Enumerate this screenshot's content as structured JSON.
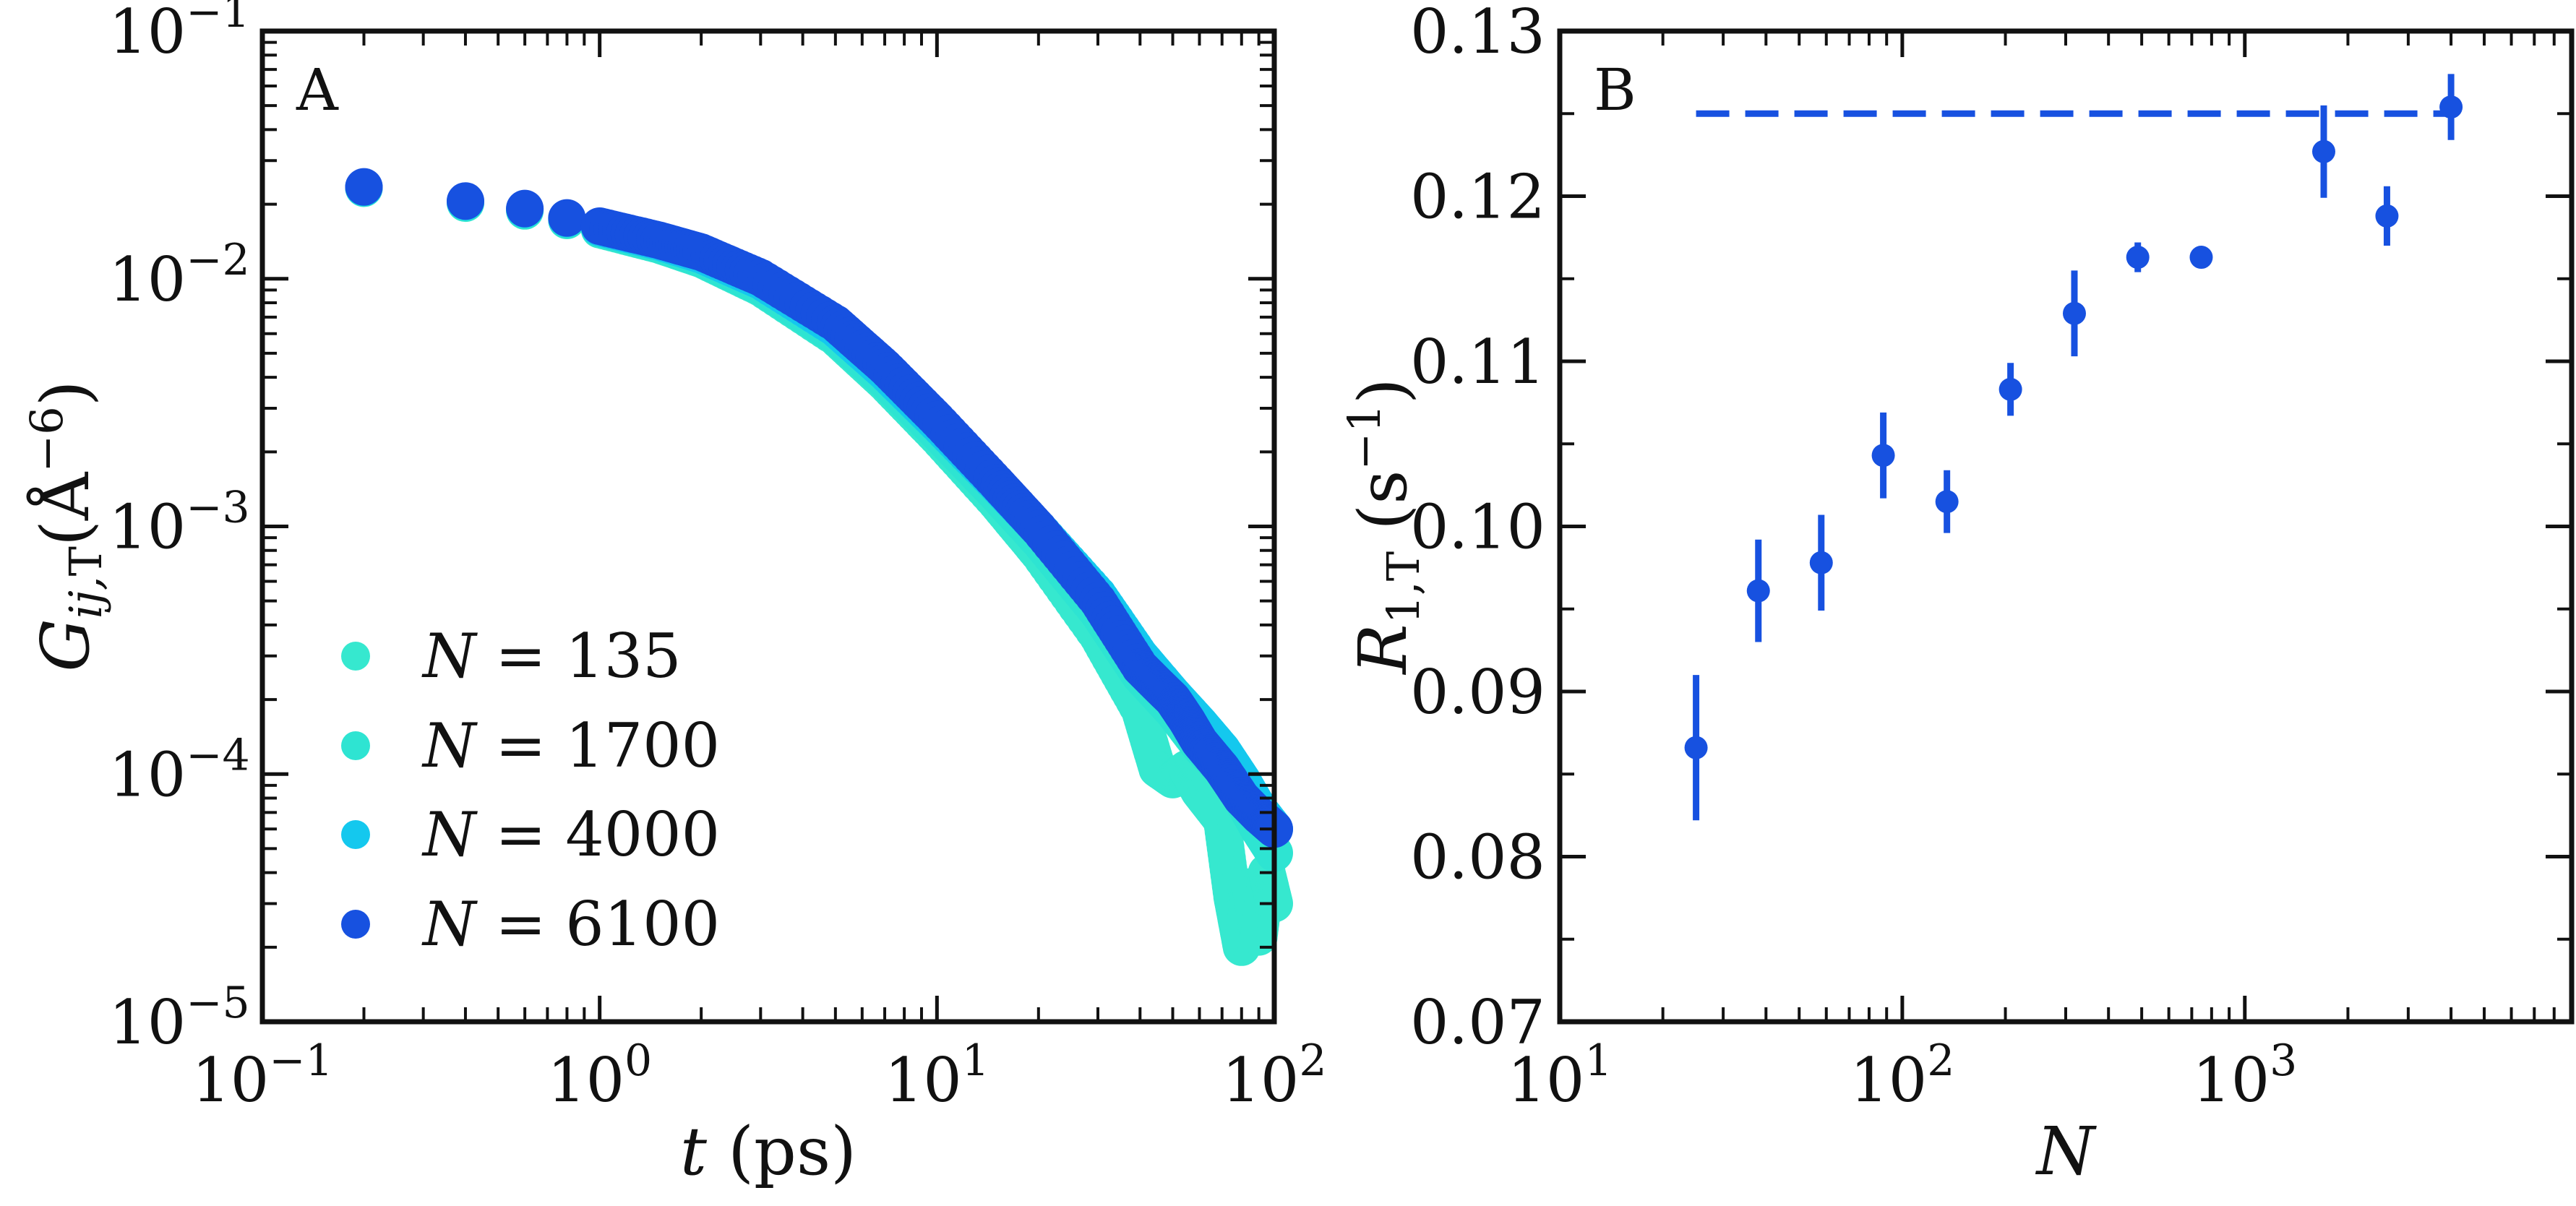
{
  "chart_data": [
    {
      "panel": "A",
      "type": "scatter",
      "xscale": "log",
      "yscale": "log",
      "xlim": [
        0.1,
        100
      ],
      "ylim": [
        1e-05,
        0.1
      ],
      "xlabel": "t (ps)",
      "ylabel": "G_ij,T(Å^−6)",
      "xticks": [
        {
          "value": 0.1,
          "base": "10",
          "exp": "−1"
        },
        {
          "value": 1,
          "base": "10",
          "exp": "0"
        },
        {
          "value": 10,
          "base": "10",
          "exp": "1"
        },
        {
          "value": 100,
          "base": "10",
          "exp": "2"
        }
      ],
      "yticks": [
        {
          "value": 0.1,
          "base": "10",
          "exp": "−1"
        },
        {
          "value": 0.01,
          "base": "10",
          "exp": "−2"
        },
        {
          "value": 0.001,
          "base": "10",
          "exp": "−3"
        },
        {
          "value": 0.0001,
          "base": "10",
          "exp": "−4"
        },
        {
          "value": 1e-05,
          "base": "10",
          "exp": "−5"
        }
      ],
      "legend_position": "bottom-left",
      "series": [
        {
          "name": "N = 135",
          "color": "#36e8cf",
          "x": [
            0.2,
            0.4,
            0.6,
            0.8,
            1.0,
            1.5,
            2,
            3,
            5,
            7,
            10,
            15,
            20,
            30,
            40,
            45,
            50,
            55,
            60,
            70,
            75,
            80,
            85,
            90,
            95,
            100
          ],
          "y": [
            0.0232,
            0.0202,
            0.0188,
            0.0172,
            0.0158,
            0.0137,
            0.012,
            0.0092,
            0.0058,
            0.0038,
            0.0023,
            0.00125,
            0.00078,
            0.00036,
            0.00018,
            0.000105,
            9.5e-05,
            0.000105,
            8.5e-05,
            6.5e-05,
            3.2e-05,
            2e-05,
            3.5e-05,
            2.2e-05,
            4e-05,
            3e-05
          ]
        },
        {
          "name": "N = 1700",
          "color": "#2ee4d2",
          "x": [
            0.2,
            0.4,
            0.6,
            0.8,
            1.0,
            1.5,
            2,
            3,
            5,
            7,
            10,
            15,
            20,
            30,
            40,
            50,
            60,
            70,
            80,
            90,
            100
          ],
          "y": [
            0.0233,
            0.0203,
            0.0189,
            0.0173,
            0.0159,
            0.0138,
            0.0121,
            0.0093,
            0.0059,
            0.0039,
            0.0024,
            0.00135,
            0.00088,
            0.00045,
            0.00025,
            0.00018,
            0.00013,
            0.000105,
            8e-05,
            6e-05,
            4.8e-05
          ]
        },
        {
          "name": "N = 4000",
          "color": "#14c8ee",
          "x": [
            0.2,
            0.4,
            0.6,
            0.8,
            1.0,
            1.5,
            2,
            3,
            5,
            7,
            10,
            15,
            20,
            30,
            40,
            50,
            60,
            70,
            80,
            90,
            100
          ],
          "y": [
            0.0234,
            0.0205,
            0.0191,
            0.0175,
            0.0161,
            0.0141,
            0.0125,
            0.0098,
            0.0063,
            0.0042,
            0.0026,
            0.00148,
            0.00098,
            0.00053,
            0.0003,
            0.00021,
            0.00016,
            0.000125,
            9.5e-05,
            7.2e-05,
            6e-05
          ]
        },
        {
          "name": "N = 6100",
          "color": "#1751e0",
          "x": [
            0.2,
            0.4,
            0.6,
            0.8,
            1.0,
            1.5,
            2,
            3,
            5,
            7,
            10,
            15,
            20,
            30,
            40,
            45,
            50,
            55,
            60,
            70,
            80,
            90,
            100
          ],
          "y": [
            0.0235,
            0.0206,
            0.0192,
            0.0176,
            0.0163,
            0.0143,
            0.0128,
            0.0101,
            0.0066,
            0.0044,
            0.0027,
            0.0015,
            0.00098,
            0.0005,
            0.00027,
            0.00023,
            0.0002,
            0.000165,
            0.000135,
            0.000105,
            8e-05,
            6.8e-05,
            6e-05
          ]
        }
      ]
    },
    {
      "panel": "B",
      "type": "scatter",
      "xscale": "log",
      "yscale": "linear",
      "xlim": [
        10,
        9000
      ],
      "ylim": [
        0.07,
        0.13
      ],
      "xlabel": "N",
      "ylabel": "R_1,T (s^−1)",
      "xticks": [
        {
          "value": 10,
          "base": "10",
          "exp": "1"
        },
        {
          "value": 100,
          "base": "10",
          "exp": "2"
        },
        {
          "value": 1000,
          "base": "10",
          "exp": "3"
        }
      ],
      "yticks": [
        0.07,
        0.08,
        0.09,
        0.1,
        0.11,
        0.12,
        0.13
      ],
      "ytick_labels": [
        "0.07",
        "0.08",
        "0.09",
        "0.10",
        "0.11",
        "0.12",
        "0.13"
      ],
      "color": "#1751e0",
      "reference_line": {
        "y": 0.125,
        "x_range": [
          25,
          4000
        ],
        "style": "dashed"
      },
      "points": [
        {
          "x": 25,
          "y": 0.0866,
          "err": 0.0044
        },
        {
          "x": 38,
          "y": 0.0961,
          "err": 0.0031
        },
        {
          "x": 58,
          "y": 0.0978,
          "err": 0.0029
        },
        {
          "x": 88,
          "y": 0.1043,
          "err": 0.0026
        },
        {
          "x": 135,
          "y": 0.1015,
          "err": 0.0019
        },
        {
          "x": 207,
          "y": 0.1083,
          "err": 0.0016
        },
        {
          "x": 318,
          "y": 0.1129,
          "err": 0.0026
        },
        {
          "x": 487,
          "y": 0.1163,
          "err": 0.0009
        },
        {
          "x": 746,
          "y": 0.1163,
          "err": 0.0002
        },
        {
          "x": 1700,
          "y": 0.1227,
          "err": 0.0028
        },
        {
          "x": 2600,
          "y": 0.1188,
          "err": 0.0018
        },
        {
          "x": 4000,
          "y": 0.1254,
          "err": 0.002
        }
      ]
    }
  ],
  "panels": {
    "a": {
      "label": "A",
      "xlabel_italic": "t",
      "xlabel_rest": " (ps)",
      "ylabel_main": "G",
      "ylabel_sub": "ij,",
      "ylabel_sub2": "T",
      "ylabel_paren_open": "(Å",
      "ylabel_sup": "−6",
      "ylabel_paren_close": ")",
      "legend": [
        {
          "var": "N",
          "eq": " = 135"
        },
        {
          "var": "N",
          "eq": " = 1700"
        },
        {
          "var": "N",
          "eq": " = 4000"
        },
        {
          "var": "N",
          "eq": " = 6100"
        }
      ]
    },
    "b": {
      "label": "B",
      "xlabel_italic": "N",
      "ylabel_main": "R",
      "ylabel_sub": "1,T",
      "ylabel_rest": " (s",
      "ylabel_sup": "−1",
      "ylabel_close": ")"
    }
  }
}
